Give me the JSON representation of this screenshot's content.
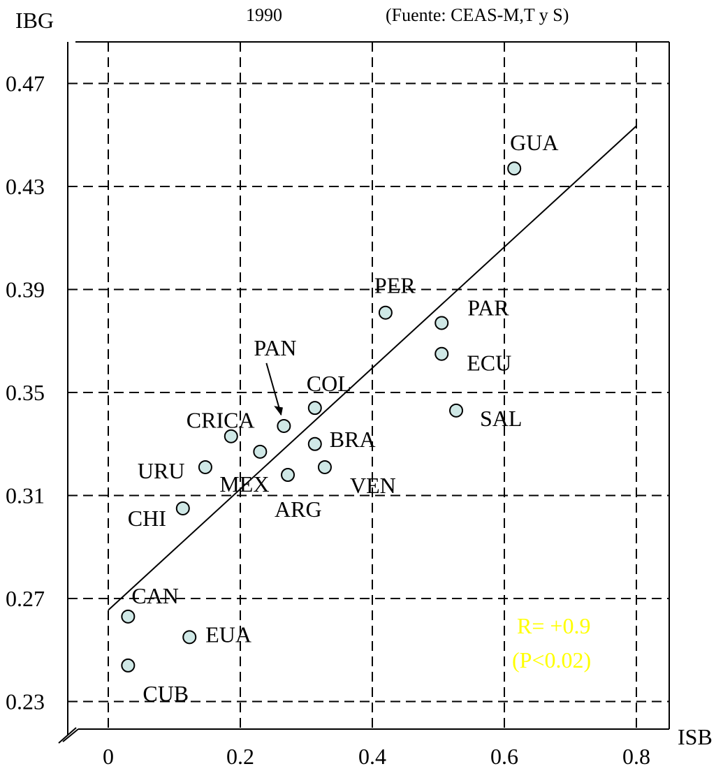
{
  "chart_data": {
    "type": "scatter",
    "title": "1990",
    "source": "(Fuente: CEAS-M,T y S)",
    "xlabel": "ISB",
    "ylabel": "IBG",
    "xlim": [
      -0.06,
      0.86
    ],
    "ylim": [
      0.2216,
      0.484
    ],
    "x_ticks": [
      {
        "value": 0,
        "label": "0"
      },
      {
        "value": 0.2,
        "label": "0.2"
      },
      {
        "value": 0.4,
        "label": "0.4"
      },
      {
        "value": 0.6,
        "label": "0.6"
      },
      {
        "value": 0.8,
        "label": "0.8"
      }
    ],
    "y_ticks": [
      {
        "value": 0.23,
        "label": "0.23"
      },
      {
        "value": 0.27,
        "label": "0.27"
      },
      {
        "value": 0.31,
        "label": "0.31"
      },
      {
        "value": 0.35,
        "label": "0.35"
      },
      {
        "value": 0.39,
        "label": "0.39"
      },
      {
        "value": 0.43,
        "label": "0.43"
      },
      {
        "value": 0.47,
        "label": "0.47"
      }
    ],
    "grid": true,
    "points": [
      {
        "label": "GUA",
        "x": 0.615,
        "y": 0.437
      },
      {
        "label": "PER",
        "x": 0.42,
        "y": 0.381
      },
      {
        "label": "PAR",
        "x": 0.505,
        "y": 0.377
      },
      {
        "label": "ECU",
        "x": 0.505,
        "y": 0.365
      },
      {
        "label": "COL",
        "x": 0.313,
        "y": 0.344
      },
      {
        "label": "SAL",
        "x": 0.527,
        "y": 0.343
      },
      {
        "label": "PAN",
        "x": 0.266,
        "y": 0.337
      },
      {
        "label": "CRICA",
        "x": 0.186,
        "y": 0.333
      },
      {
        "label": "BRA",
        "x": 0.313,
        "y": 0.33
      },
      {
        "label": "MEX",
        "x": 0.23,
        "y": 0.327
      },
      {
        "label": "VEN",
        "x": 0.328,
        "y": 0.321
      },
      {
        "label": "URU",
        "x": 0.147,
        "y": 0.321
      },
      {
        "label": "ARG",
        "x": 0.272,
        "y": 0.318
      },
      {
        "label": "CHI",
        "x": 0.113,
        "y": 0.305
      },
      {
        "label": "CAN",
        "x": 0.03,
        "y": 0.263
      },
      {
        "label": "EUA",
        "x": 0.123,
        "y": 0.255
      },
      {
        "label": "CUB",
        "x": 0.03,
        "y": 0.244
      }
    ],
    "trendline": {
      "x": [
        0.0,
        0.8
      ],
      "y": [
        0.2655,
        0.4535
      ]
    },
    "annotation": {
      "text_1": "R= +0.9",
      "text_2": "(P<0.02)",
      "color": "#ffff00"
    },
    "point_fill": "#cfe8e6",
    "point_stroke": "#000000"
  }
}
